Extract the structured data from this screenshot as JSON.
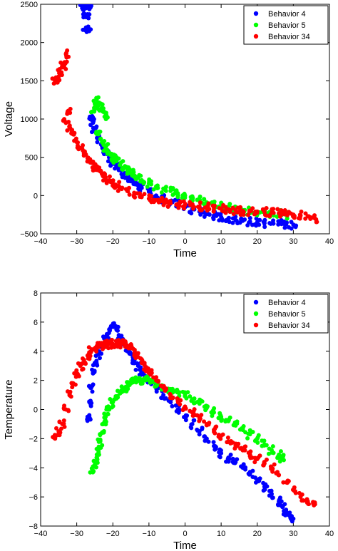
{
  "chart_data": [
    {
      "type": "scatter",
      "xlabel": "Time",
      "ylabel": "Voltage",
      "xlim": [
        -40,
        40
      ],
      "ylim": [
        -500,
        2500
      ],
      "xticks": [
        -40,
        -30,
        -20,
        -10,
        0,
        10,
        20,
        30,
        40
      ],
      "yticks": [
        -500,
        0,
        500,
        1000,
        1500,
        2000,
        2500
      ],
      "legend_position": "top-right",
      "series": [
        {
          "name": "Behavior 4",
          "color": "#0000ff",
          "points": [
            [
              -28.5,
              2450
            ],
            [
              -28,
              2480
            ],
            [
              -27.5,
              2500
            ],
            [
              -27,
              2470
            ],
            [
              -26.5,
              2500
            ],
            [
              -28,
              2380
            ],
            [
              -27,
              2370
            ],
            [
              -27.5,
              2160
            ],
            [
              -26.8,
              2160
            ],
            [
              -26,
              1000
            ],
            [
              -25.5,
              950
            ],
            [
              -25,
              850
            ],
            [
              -24,
              750
            ],
            [
              -23,
              650
            ],
            [
              -22,
              560
            ],
            [
              -21,
              500
            ],
            [
              -20,
              430
            ],
            [
              -19,
              380
            ],
            [
              -18,
              330
            ],
            [
              -17,
              280
            ],
            [
              -16,
              240
            ],
            [
              -15,
              200
            ],
            [
              -14,
              160
            ],
            [
              -13,
              130
            ],
            [
              -12,
              100
            ],
            [
              -10,
              50
            ],
            [
              -8,
              0
            ],
            [
              -6,
              -40
            ],
            [
              -4,
              -80
            ],
            [
              -2,
              -110
            ],
            [
              0,
              -150
            ],
            [
              2,
              -180
            ],
            [
              4,
              -210
            ],
            [
              6,
              -240
            ],
            [
              8,
              -260
            ],
            [
              10,
              -280
            ],
            [
              12,
              -300
            ],
            [
              14,
              -320
            ],
            [
              16,
              -330
            ],
            [
              18,
              -340
            ],
            [
              20,
              -350
            ],
            [
              22,
              -360
            ],
            [
              24,
              -365
            ],
            [
              26,
              -370
            ],
            [
              28,
              -375
            ],
            [
              30,
              -380
            ]
          ]
        },
        {
          "name": "Behavior 5",
          "color": "#00ff00",
          "points": [
            [
              -25.5,
              1100
            ],
            [
              -25,
              1200
            ],
            [
              -24.5,
              1250
            ],
            [
              -24,
              1180
            ],
            [
              -23,
              1150
            ],
            [
              -22.5,
              1100
            ],
            [
              -22,
              1050
            ],
            [
              -24,
              800
            ],
            [
              -23,
              700
            ],
            [
              -22,
              620
            ],
            [
              -21,
              560
            ],
            [
              -20,
              500
            ],
            [
              -19,
              450
            ],
            [
              -18,
              400
            ],
            [
              -17,
              360
            ],
            [
              -16,
              320
            ],
            [
              -15,
              290
            ],
            [
              -14,
              260
            ],
            [
              -13,
              230
            ],
            [
              -12,
              200
            ],
            [
              -10,
              160
            ],
            [
              -8,
              120
            ],
            [
              -6,
              90
            ],
            [
              -4,
              60
            ],
            [
              -2,
              30
            ],
            [
              0,
              0
            ],
            [
              2,
              -30
            ],
            [
              4,
              -60
            ],
            [
              6,
              -90
            ],
            [
              8,
              -110
            ],
            [
              10,
              -130
            ],
            [
              12,
              -150
            ],
            [
              14,
              -170
            ],
            [
              16,
              -190
            ],
            [
              18,
              -200
            ],
            [
              20,
              -210
            ],
            [
              22,
              -220
            ],
            [
              24,
              -230
            ],
            [
              26,
              -240
            ],
            [
              28,
              -250
            ]
          ]
        },
        {
          "name": "Behavior 34",
          "color": "#ff0000",
          "points": [
            [
              -36,
              1500
            ],
            [
              -35,
              1520
            ],
            [
              -34.5,
              1600
            ],
            [
              -34,
              1700
            ],
            [
              -33.5,
              1700
            ],
            [
              -33,
              1850
            ],
            [
              -32.5,
              1100
            ],
            [
              -33,
              950
            ],
            [
              -32,
              900
            ],
            [
              -31,
              800
            ],
            [
              -30,
              700
            ],
            [
              -29,
              620
            ],
            [
              -28,
              550
            ],
            [
              -27,
              490
            ],
            [
              -26,
              430
            ],
            [
              -25,
              380
            ],
            [
              -24,
              330
            ],
            [
              -23,
              280
            ],
            [
              -22,
              240
            ],
            [
              -21,
              200
            ],
            [
              -20,
              160
            ],
            [
              -19,
              130
            ],
            [
              -18,
              100
            ],
            [
              -16,
              60
            ],
            [
              -14,
              20
            ],
            [
              -12,
              -10
            ],
            [
              -10,
              -40
            ],
            [
              -8,
              -60
            ],
            [
              -6,
              -80
            ],
            [
              -4,
              -100
            ],
            [
              -2,
              -110
            ],
            [
              0,
              -120
            ],
            [
              2,
              -130
            ],
            [
              4,
              -140
            ],
            [
              6,
              -150
            ],
            [
              8,
              -160
            ],
            [
              10,
              -170
            ],
            [
              12,
              -180
            ],
            [
              14,
              -190
            ],
            [
              16,
              -200
            ],
            [
              18,
              -205
            ],
            [
              20,
              -210
            ],
            [
              22,
              -215
            ],
            [
              24,
              -220
            ],
            [
              26,
              -230
            ],
            [
              28,
              -240
            ],
            [
              30,
              -250
            ],
            [
              32,
              -260
            ],
            [
              34,
              -270
            ],
            [
              36,
              -300
            ]
          ]
        }
      ]
    },
    {
      "type": "scatter",
      "xlabel": "Time",
      "ylabel": "Temperature",
      "xlim": [
        -40,
        40
      ],
      "ylim": [
        -8,
        8
      ],
      "xticks": [
        -40,
        -30,
        -20,
        -10,
        0,
        10,
        20,
        30,
        40
      ],
      "yticks": [
        -8,
        -6,
        -4,
        -2,
        0,
        2,
        4,
        6,
        8
      ],
      "legend_position": "top-right",
      "series": [
        {
          "name": "Behavior 4",
          "color": "#0000ff",
          "points": [
            [
              -27,
              -0.5
            ],
            [
              -26.5,
              0.5
            ],
            [
              -26,
              1.5
            ],
            [
              -25.5,
              2.5
            ],
            [
              -25,
              3.2
            ],
            [
              -24,
              3.8
            ],
            [
              -23,
              4.4
            ],
            [
              -22,
              5
            ],
            [
              -21,
              5.5
            ],
            [
              -20,
              5.8
            ],
            [
              -19,
              5.5
            ],
            [
              -18,
              5
            ],
            [
              -17,
              4.6
            ],
            [
              -16,
              4.2
            ],
            [
              -15,
              3.8
            ],
            [
              -14,
              3.4
            ],
            [
              -13,
              3
            ],
            [
              -12,
              2.6
            ],
            [
              -11,
              2.3
            ],
            [
              -10,
              2
            ],
            [
              -8,
              1.5
            ],
            [
              -6,
              1
            ],
            [
              -4,
              0.5
            ],
            [
              -2,
              0
            ],
            [
              0,
              -0.5
            ],
            [
              2,
              -1
            ],
            [
              4,
              -1.5
            ],
            [
              6,
              -2
            ],
            [
              8,
              -2.5
            ],
            [
              10,
              -3
            ],
            [
              12,
              -3.3
            ],
            [
              14,
              -3.6
            ],
            [
              16,
              -4
            ],
            [
              18,
              -4.4
            ],
            [
              20,
              -4.8
            ],
            [
              22,
              -5.3
            ],
            [
              24,
              -5.8
            ],
            [
              26,
              -6.3
            ],
            [
              27,
              -6.7
            ],
            [
              28,
              -7
            ],
            [
              29,
              -7.3
            ],
            [
              30,
              -7.5
            ]
          ]
        },
        {
          "name": "Behavior 5",
          "color": "#00ff00",
          "points": [
            [
              -25.5,
              -4.2
            ],
            [
              -25,
              -3.8
            ],
            [
              -24.5,
              -3.3
            ],
            [
              -24,
              -2.8
            ],
            [
              -23.5,
              -2.2
            ],
            [
              -23,
              -1.6
            ],
            [
              -22.5,
              -1
            ],
            [
              -22,
              -0.5
            ],
            [
              -21,
              0
            ],
            [
              -20,
              0.5
            ],
            [
              -19,
              0.9
            ],
            [
              -18,
              1.2
            ],
            [
              -17,
              1.4
            ],
            [
              -16,
              1.6
            ],
            [
              -15,
              1.8
            ],
            [
              -14,
              1.9
            ],
            [
              -13,
              2
            ],
            [
              -12,
              2
            ],
            [
              -11,
              2
            ],
            [
              -10,
              2
            ],
            [
              -9,
              1.9
            ],
            [
              -8,
              1.8
            ],
            [
              -6,
              1.6
            ],
            [
              -4,
              1.4
            ],
            [
              -2,
              1.2
            ],
            [
              0,
              1
            ],
            [
              2,
              0.7
            ],
            [
              4,
              0.4
            ],
            [
              6,
              0.1
            ],
            [
              8,
              -0.2
            ],
            [
              10,
              -0.5
            ],
            [
              12,
              -0.8
            ],
            [
              14,
              -1.1
            ],
            [
              16,
              -1.4
            ],
            [
              18,
              -1.7
            ],
            [
              20,
              -2
            ],
            [
              22,
              -2.4
            ],
            [
              24,
              -2.8
            ],
            [
              26,
              -3.1
            ],
            [
              27,
              -3.4
            ]
          ]
        },
        {
          "name": "Behavior 34",
          "color": "#ff0000",
          "points": [
            [
              -36,
              -2
            ],
            [
              -35,
              -1.5
            ],
            [
              -34,
              -1
            ],
            [
              -33,
              0
            ],
            [
              -32,
              1
            ],
            [
              -31,
              1.8
            ],
            [
              -30,
              2.5
            ],
            [
              -29,
              3
            ],
            [
              -28,
              3.4
            ],
            [
              -27,
              3.7
            ],
            [
              -26,
              4
            ],
            [
              -25,
              4.2
            ],
            [
              -24,
              4.3
            ],
            [
              -23,
              4.4
            ],
            [
              -22,
              4.5
            ],
            [
              -21,
              4.5
            ],
            [
              -20,
              4.5
            ],
            [
              -19,
              4.5
            ],
            [
              -18,
              4.5
            ],
            [
              -17,
              4.5
            ],
            [
              -16,
              4.4
            ],
            [
              -15,
              4.2
            ],
            [
              -14,
              3.9
            ],
            [
              -13,
              3.6
            ],
            [
              -12,
              3.2
            ],
            [
              -11,
              2.9
            ],
            [
              -10,
              2.5
            ],
            [
              -8,
              2
            ],
            [
              -6,
              1.5
            ],
            [
              -4,
              1
            ],
            [
              -2,
              0.6
            ],
            [
              0,
              0.2
            ],
            [
              2,
              -0.2
            ],
            [
              4,
              -0.6
            ],
            [
              6,
              -1
            ],
            [
              8,
              -1.4
            ],
            [
              10,
              -1.8
            ],
            [
              12,
              -2.2
            ],
            [
              14,
              -2.5
            ],
            [
              16,
              -2.8
            ],
            [
              18,
              -3.1
            ],
            [
              20,
              -3.4
            ],
            [
              22,
              -3.7
            ],
            [
              24,
              -4
            ],
            [
              26,
              -4.5
            ],
            [
              28,
              -5
            ],
            [
              30,
              -5.5
            ],
            [
              32,
              -6
            ],
            [
              34,
              -6.3
            ],
            [
              36,
              -6.5
            ]
          ]
        }
      ]
    }
  ]
}
